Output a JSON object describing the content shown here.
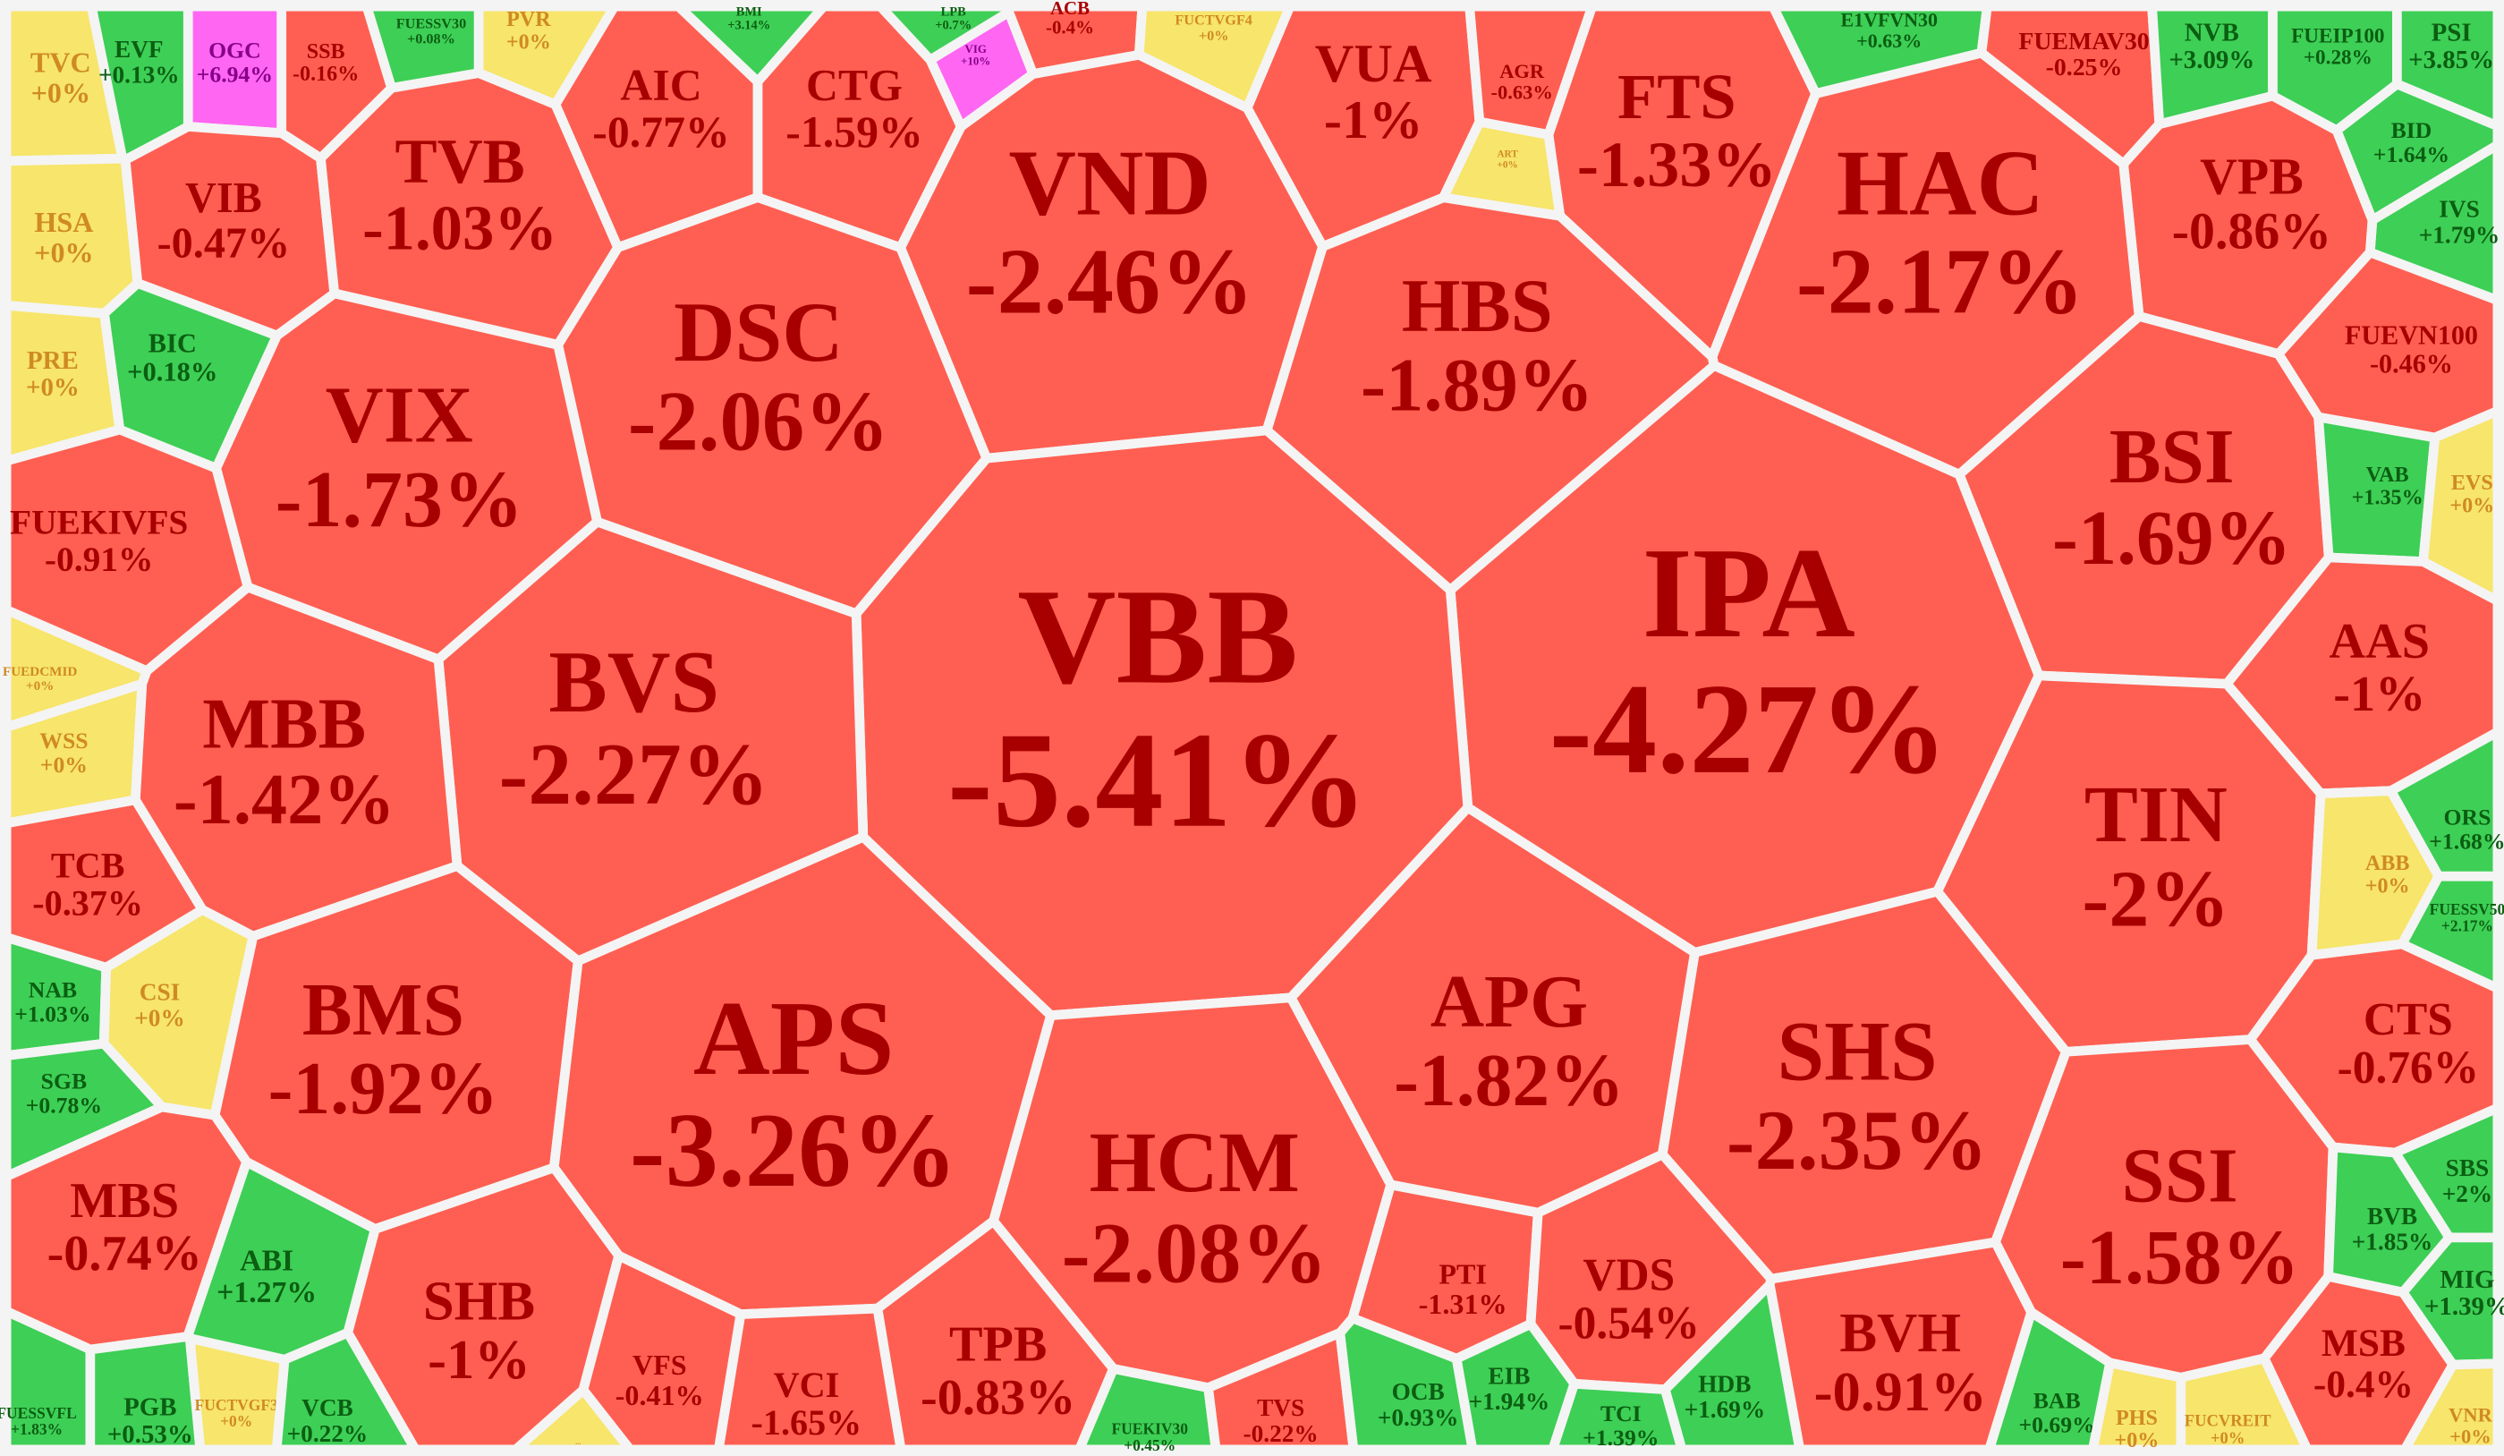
{
  "palette": {
    "down": {
      "fill": "#ff5f52",
      "text": "#a80000"
    },
    "up": {
      "fill": "#3ecf56",
      "text": "#0b5e12"
    },
    "flat": {
      "fill": "#f7e56c",
      "text": "#d08a22"
    },
    "ceiling": {
      "fill": "#ff66f2",
      "text": "#86008a"
    },
    "background": "#f4f4f4"
  },
  "stocks": [
    {
      "ticker": "TVC",
      "change": "+0%"
    },
    {
      "ticker": "EVF",
      "change": "+0.13%"
    },
    {
      "ticker": "OGC",
      "change": "+6.94%"
    },
    {
      "ticker": "SSB",
      "change": "-0.16%"
    },
    {
      "ticker": "FUESSV30",
      "change": "+0.08%"
    },
    {
      "ticker": "PVR",
      "change": "+0%"
    },
    {
      "ticker": "AIC",
      "change": "-0.77%"
    },
    {
      "ticker": "BMI",
      "change": "+3.14%"
    },
    {
      "ticker": "CTG",
      "change": "-1.59%"
    },
    {
      "ticker": "LPB",
      "change": "+0.7%"
    },
    {
      "ticker": "VIG",
      "change": "+10%"
    },
    {
      "ticker": "ACB",
      "change": "-0.4%"
    },
    {
      "ticker": "FUCTVGF4",
      "change": "+0%"
    },
    {
      "ticker": "VUA",
      "change": "-1%"
    },
    {
      "ticker": "AGR",
      "change": "-0.63%"
    },
    {
      "ticker": "ART",
      "change": "+0%"
    },
    {
      "ticker": "FTS",
      "change": "-1.33%"
    },
    {
      "ticker": "E1VFVN30",
      "change": "+0.63%"
    },
    {
      "ticker": "FUEMAV30",
      "change": "-0.25%"
    },
    {
      "ticker": "NVB",
      "change": "+3.09%"
    },
    {
      "ticker": "FUEIP100",
      "change": "+0.28%"
    },
    {
      "ticker": "PSI",
      "change": "+3.85%"
    },
    {
      "ticker": "BID",
      "change": "+1.64%"
    },
    {
      "ticker": "IVS",
      "change": "+1.79%"
    },
    {
      "ticker": "VPB",
      "change": "-0.86%"
    },
    {
      "ticker": "FUEVN100",
      "change": "-0.46%"
    },
    {
      "ticker": "HAC",
      "change": "-2.17%"
    },
    {
      "ticker": "HSA",
      "change": "+0%"
    },
    {
      "ticker": "VIB",
      "change": "-0.47%"
    },
    {
      "ticker": "TVB",
      "change": "-1.03%"
    },
    {
      "ticker": "VND",
      "change": "-2.46%"
    },
    {
      "ticker": "HBS",
      "change": "-1.89%"
    },
    {
      "ticker": "PRE",
      "change": "+0%"
    },
    {
      "ticker": "BIC",
      "change": "+0.18%"
    },
    {
      "ticker": "DSC",
      "change": "-2.06%"
    },
    {
      "ticker": "VIX",
      "change": "-1.73%"
    },
    {
      "ticker": "BSI",
      "change": "-1.69%"
    },
    {
      "ticker": "VAB",
      "change": "+1.35%"
    },
    {
      "ticker": "EVS",
      "change": "+0%"
    },
    {
      "ticker": "FUEKIVFS",
      "change": "-0.91%"
    },
    {
      "ticker": "IPA",
      "change": "-4.27%"
    },
    {
      "ticker": "AAS",
      "change": "-1%"
    },
    {
      "ticker": "VBB",
      "change": "-5.41%"
    },
    {
      "ticker": "FUEDCMID",
      "change": "+0%"
    },
    {
      "ticker": "WSS",
      "change": "+0%"
    },
    {
      "ticker": "BVS",
      "change": "-2.27%"
    },
    {
      "ticker": "MBB",
      "change": "-1.42%"
    },
    {
      "ticker": "TIN",
      "change": "-2%"
    },
    {
      "ticker": "ABB",
      "change": "+0%"
    },
    {
      "ticker": "ORS",
      "change": "+1.68%"
    },
    {
      "ticker": "FUESSV50",
      "change": "+2.17%"
    },
    {
      "ticker": "TCB",
      "change": "-0.37%"
    },
    {
      "ticker": "NAB",
      "change": "+1.03%"
    },
    {
      "ticker": "CSI",
      "change": "+0%"
    },
    {
      "ticker": "SGB",
      "change": "+0.78%"
    },
    {
      "ticker": "BMS",
      "change": "-1.92%"
    },
    {
      "ticker": "APS",
      "change": "-3.26%"
    },
    {
      "ticker": "APG",
      "change": "-1.82%"
    },
    {
      "ticker": "SHS",
      "change": "-2.35%"
    },
    {
      "ticker": "CTS",
      "change": "-0.76%"
    },
    {
      "ticker": "MBS",
      "change": "-0.74%"
    },
    {
      "ticker": "HCM",
      "change": "-2.08%"
    },
    {
      "ticker": "SSI",
      "change": "-1.58%"
    },
    {
      "ticker": "BVB",
      "change": "+1.85%"
    },
    {
      "ticker": "SBS",
      "change": "+2%"
    },
    {
      "ticker": "ABI",
      "change": "+1.27%"
    },
    {
      "ticker": "MIG",
      "change": "+1.39%"
    },
    {
      "ticker": "SHB",
      "change": "-1%"
    },
    {
      "ticker": "PTI",
      "change": "-1.31%"
    },
    {
      "ticker": "VDS",
      "change": "-0.54%"
    },
    {
      "ticker": "BVH",
      "change": "-0.91%"
    },
    {
      "ticker": "MSB",
      "change": "-0.4%"
    },
    {
      "ticker": "FUESSVFL",
      "change": "+1.83%"
    },
    {
      "ticker": "PGB",
      "change": "+0.53%"
    },
    {
      "ticker": "FUCTVGF3",
      "change": "+0%"
    },
    {
      "ticker": "VCB",
      "change": "+0.22%"
    },
    {
      "ticker": "VFS",
      "change": "-0.41%"
    },
    {
      "ticker": "VCI",
      "change": "-1.65%"
    },
    {
      "ticker": "TPB",
      "change": "-0.83%"
    },
    {
      "ticker": "FUEKIV30",
      "change": "+0.45%"
    },
    {
      "ticker": "TVS",
      "change": "-0.22%"
    },
    {
      "ticker": "OCB",
      "change": "+0.93%"
    },
    {
      "ticker": "EIB",
      "change": "+1.94%"
    },
    {
      "ticker": "TCI",
      "change": "+1.39%"
    },
    {
      "ticker": "HDB",
      "change": "+1.69%"
    },
    {
      "ticker": "BAB",
      "change": "+0.69%"
    },
    {
      "ticker": "PHS",
      "change": "+0%"
    },
    {
      "ticker": "FUCVREIT",
      "change": "+0%"
    },
    {
      "ticker": "VNR",
      "change": "+0%"
    },
    {
      "ticker": "...",
      "change": ""
    }
  ]
}
